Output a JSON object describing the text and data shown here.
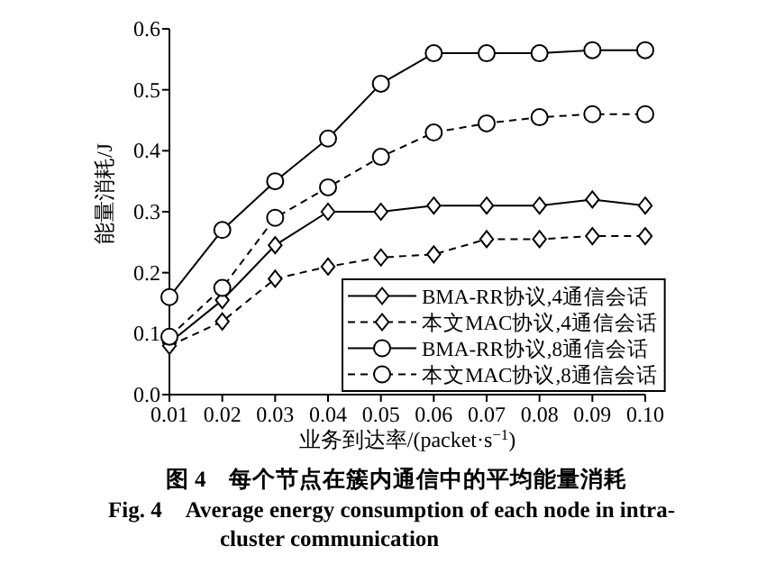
{
  "chart_data": {
    "type": "line",
    "title": "图 4　每个节点在簇内通信中的平均能量消耗",
    "subtitle": "Fig. 4　Average energy consumption of each node in intra-cluster communication",
    "xlabel": "业务到达率/(packet·s$^{−1}$)",
    "ylabel": "能量消耗/J",
    "x": [
      0.01,
      0.02,
      0.03,
      0.04,
      0.05,
      0.06,
      0.07,
      0.08,
      0.09,
      0.1
    ],
    "xlim": [
      0.01,
      0.1
    ],
    "xticks": [
      {
        "value": 0.01,
        "label": "0.01"
      },
      {
        "value": 0.02,
        "label": "0.02"
      },
      {
        "value": 0.03,
        "label": "0.03"
      },
      {
        "value": 0.04,
        "label": "0.04"
      },
      {
        "value": 0.05,
        "label": "0.05"
      },
      {
        "value": 0.06,
        "label": "0.06"
      },
      {
        "value": 0.07,
        "label": "0.07"
      },
      {
        "value": 0.08,
        "label": "0.08"
      },
      {
        "value": 0.09,
        "label": "0.09"
      },
      {
        "value": 0.1,
        "label": "0.10"
      }
    ],
    "ylim": [
      0,
      0.6
    ],
    "yticks": [
      {
        "value": 0,
        "label": "0.0"
      },
      {
        "value": 0.1,
        "label": "0.1"
      },
      {
        "value": 0.2,
        "label": "0.2"
      },
      {
        "value": 0.3,
        "label": "0.3"
      },
      {
        "value": 0.4,
        "label": "0.4"
      },
      {
        "value": 0.5,
        "label": "0.5"
      },
      {
        "value": 0.6,
        "label": "0.6"
      }
    ],
    "grid": false,
    "legend": "bottom right",
    "series": [
      {
        "name": "BMA-RR协议,4通信会话",
        "color": "#000000",
        "marker": "diamond",
        "line_style": "solid",
        "values": [
          0.085,
          0.155,
          0.245,
          0.3,
          0.3,
          0.31,
          0.31,
          0.31,
          0.32,
          0.31
        ]
      },
      {
        "name": "本文MAC协议,4通信会话",
        "color": "#000000",
        "marker": "diamond",
        "line_style": "dashed",
        "values": [
          0.08,
          0.12,
          0.19,
          0.21,
          0.225,
          0.23,
          0.255,
          0.255,
          0.26,
          0.26
        ]
      },
      {
        "name": "BMA-RR协议,8通信会话",
        "color": "#000000",
        "marker": "circle",
        "line_style": "solid",
        "values": [
          0.16,
          0.27,
          0.35,
          0.42,
          0.51,
          0.56,
          0.56,
          0.56,
          0.565,
          0.565
        ]
      },
      {
        "name": "本文MAC协议,8通信会话",
        "color": "#000000",
        "marker": "circle",
        "line_style": "dashed",
        "values": [
          0.095,
          0.175,
          0.29,
          0.34,
          0.39,
          0.43,
          0.445,
          0.455,
          0.46,
          0.46
        ]
      }
    ]
  }
}
